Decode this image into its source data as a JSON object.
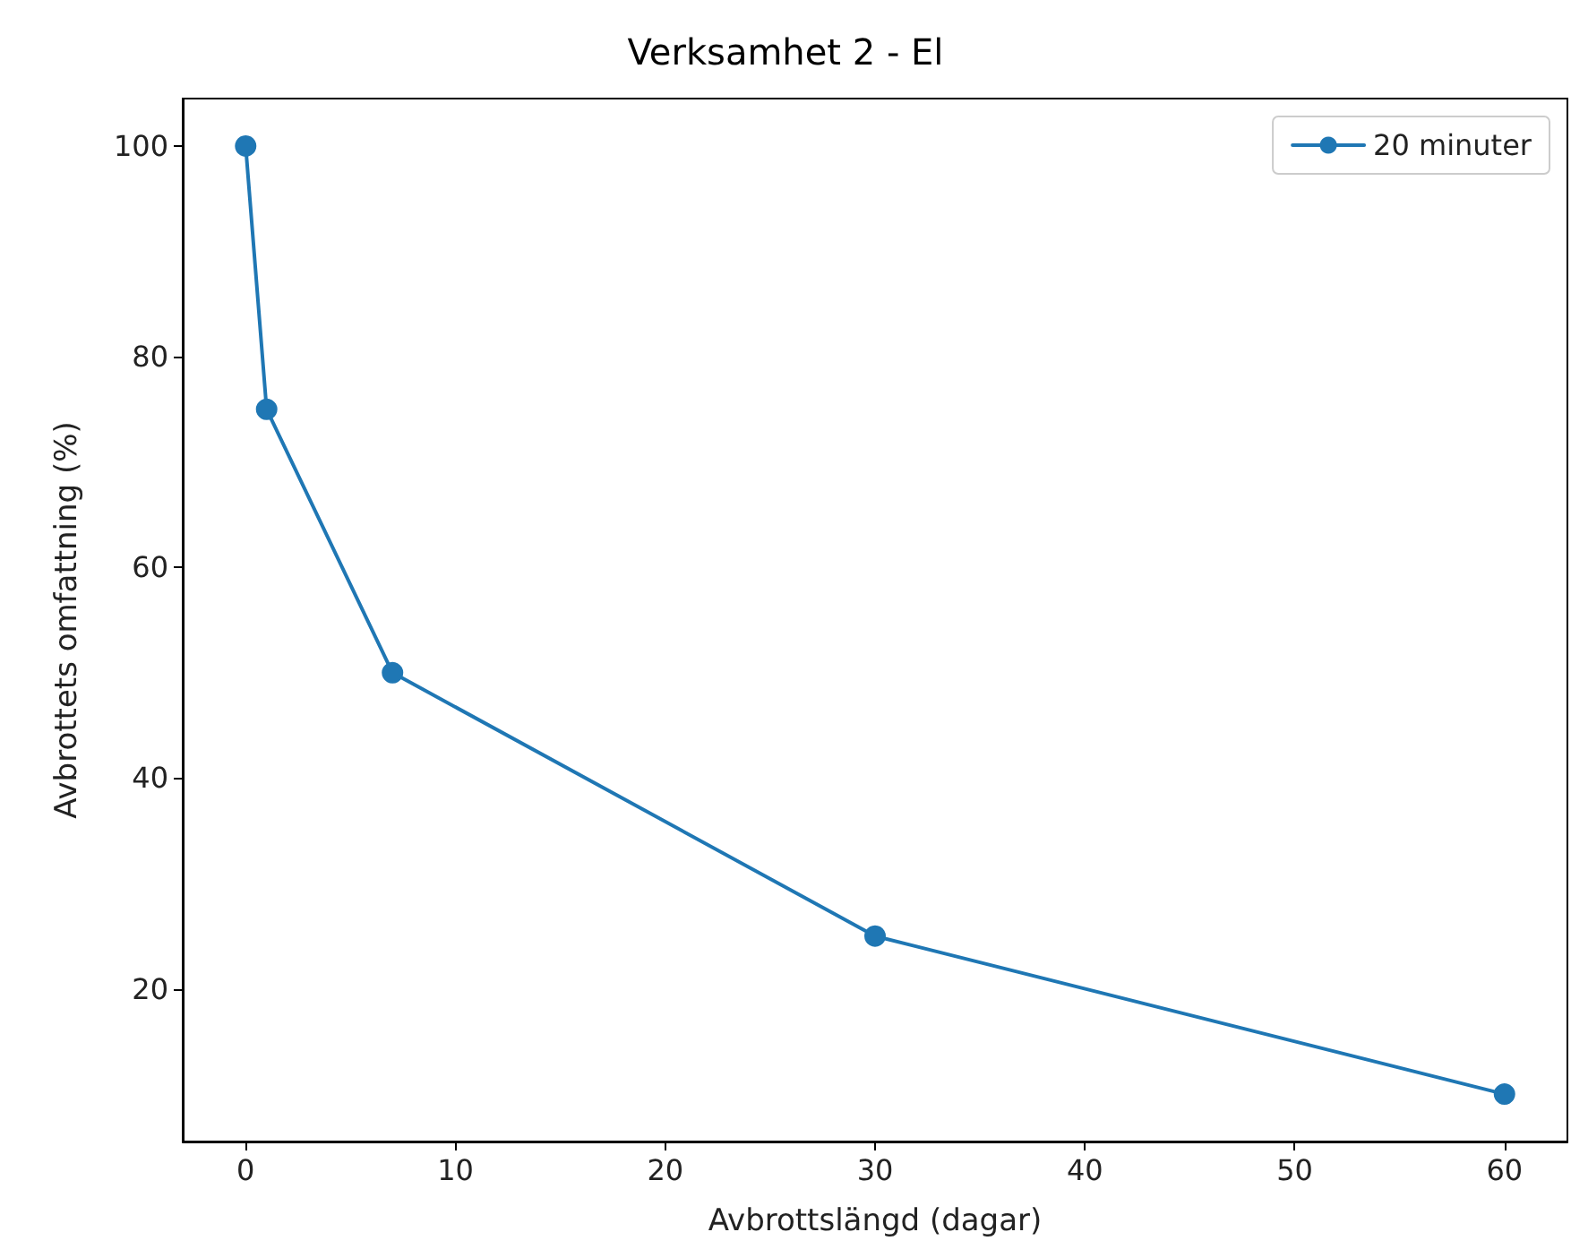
{
  "chart_data": {
    "type": "line",
    "title": "Verksamhet 2 - El",
    "xlabel": "Avbrottslängd (dagar)",
    "ylabel": "Avbrottets omfattning (%)",
    "x": [
      0,
      1,
      7,
      30,
      60
    ],
    "series": [
      {
        "name": "20 minuter",
        "color": "#1f77b4",
        "values": [
          100,
          75,
          50,
          25,
          10
        ]
      }
    ],
    "xlim": [
      -3,
      63
    ],
    "xticks": [
      0,
      10,
      20,
      30,
      40,
      50,
      60
    ],
    "ylim": [
      5.5,
      104.5
    ],
    "yticks": [
      20,
      40,
      60,
      80,
      100
    ],
    "grid": false,
    "legend": "top right",
    "marker": "circle",
    "line_style": "solid"
  }
}
